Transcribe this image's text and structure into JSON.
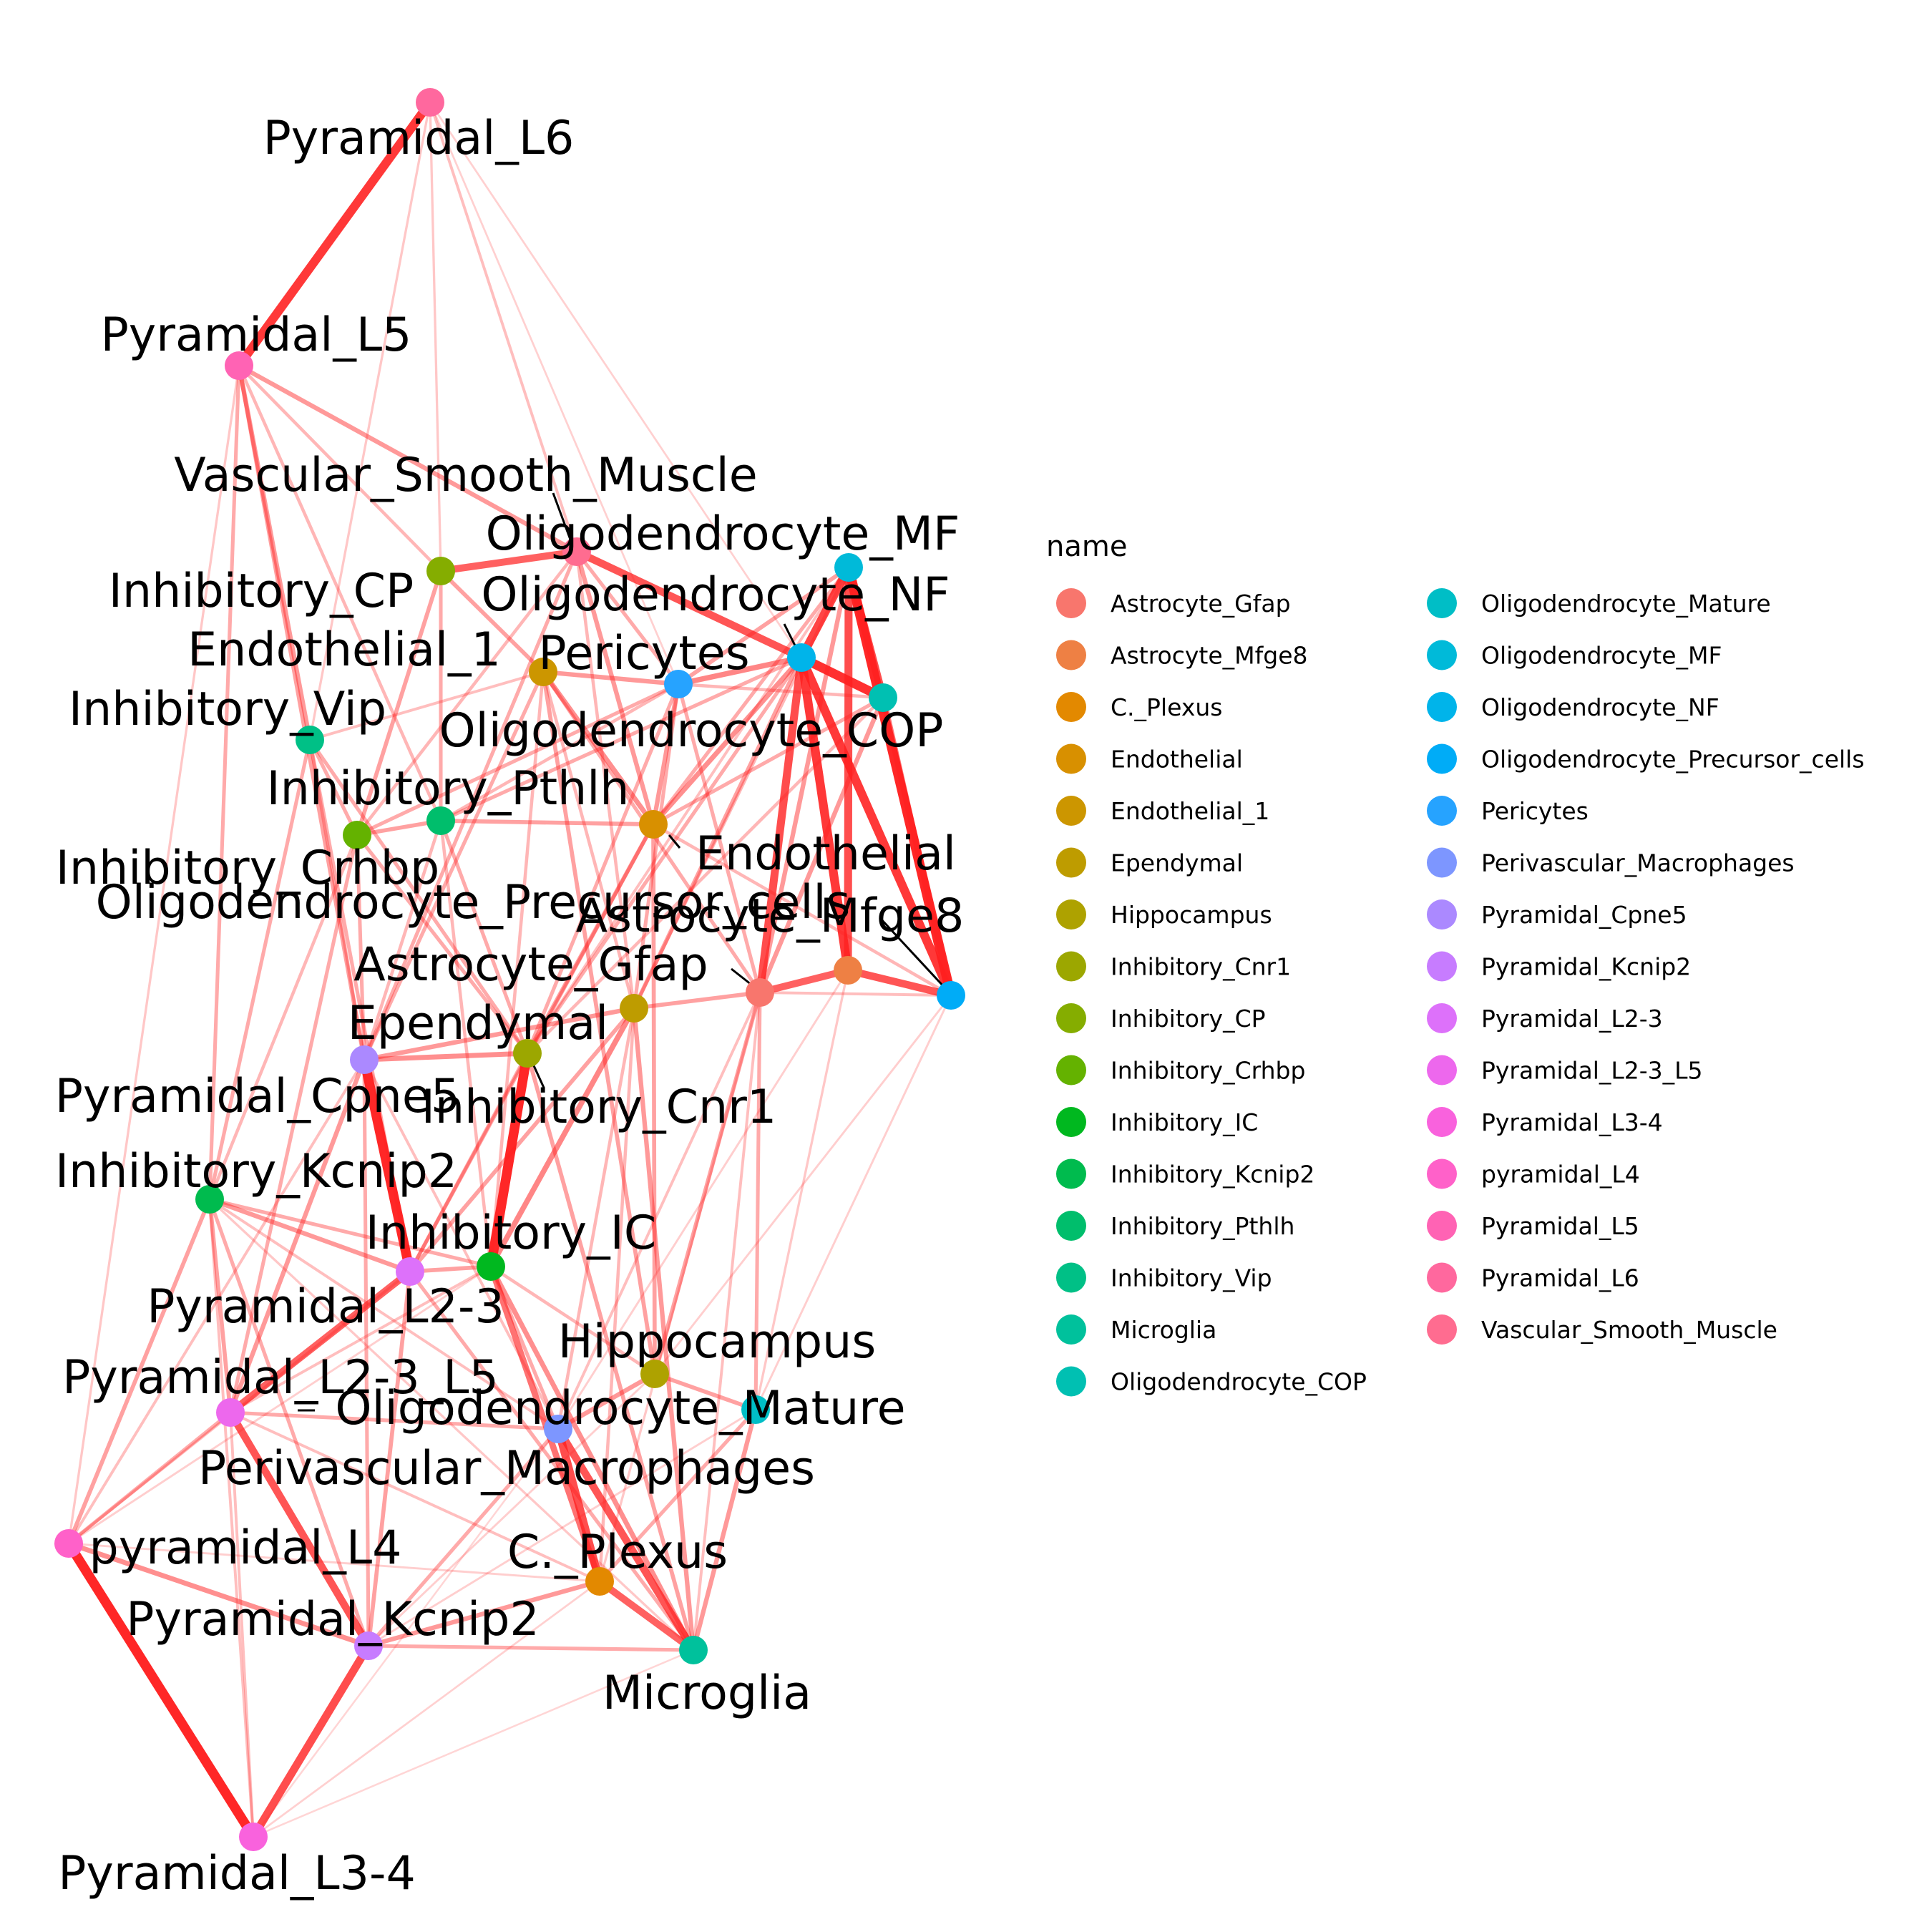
{
  "legend": {
    "title": "name"
  },
  "edge_color": "#ff2020",
  "nodes": [
    {
      "name": "Astrocyte_Gfap",
      "color": "#F8766D"
    },
    {
      "name": "Astrocyte_Mfge8",
      "color": "#EE8044"
    },
    {
      "name": "C._Plexus",
      "color": "#E38900"
    },
    {
      "name": "Endothelial",
      "color": "#D89000"
    },
    {
      "name": "Endothelial_1",
      "color": "#CC9600"
    },
    {
      "name": "Ependymal",
      "color": "#BE9C00"
    },
    {
      "name": "Hippocampus",
      "color": "#AEA200"
    },
    {
      "name": "Inhibitory_Cnr1",
      "color": "#9CA700"
    },
    {
      "name": "Inhibitory_CP",
      "color": "#85AD00"
    },
    {
      "name": "Inhibitory_Crhbp",
      "color": "#64B200"
    },
    {
      "name": "Inhibitory_IC",
      "color": "#00B81F"
    },
    {
      "name": "Inhibitory_Kcnip2",
      "color": "#00BB4E"
    },
    {
      "name": "Inhibitory_Pthlh",
      "color": "#00BE6C"
    },
    {
      "name": "Inhibitory_Vip",
      "color": "#00C086"
    },
    {
      "name": "Microglia",
      "color": "#00C19C"
    },
    {
      "name": "Oligodendrocyte_COP",
      "color": "#00C0B2"
    },
    {
      "name": "Oligodendrocyte_Mature",
      "color": "#00BEC6"
    },
    {
      "name": "Oligodendrocyte_MF",
      "color": "#00BAD9"
    },
    {
      "name": "Oligodendrocyte_NF",
      "color": "#00B4EA"
    },
    {
      "name": "Oligodendrocyte_Precursor_cells",
      "color": "#00ACF7"
    },
    {
      "name": "Pericytes",
      "color": "#26A3FF"
    },
    {
      "name": "Perivascular_Macrophages",
      "color": "#7D96FF"
    },
    {
      "name": "Pyramidal_Cpne5",
      "color": "#AB89FF"
    },
    {
      "name": "Pyramidal_Kcnip2",
      "color": "#C77CFF"
    },
    {
      "name": "Pyramidal_L2-3",
      "color": "#DD71FA"
    },
    {
      "name": "Pyramidal_L2-3_L5",
      "color": "#ED68ED"
    },
    {
      "name": "Pyramidal_L3-4",
      "color": "#F962DD"
    },
    {
      "name": "pyramidal_L4",
      "color": "#FF61C9"
    },
    {
      "name": "Pyramidal_L5",
      "color": "#FF63B4"
    },
    {
      "name": "Pyramidal_L6",
      "color": "#FF689E"
    },
    {
      "name": "Vascular_Smooth_Muscle",
      "color": "#FF6C90"
    }
  ],
  "edges": [
    {
      "source": "Pyramidal_L6",
      "target": "Pyramidal_L5",
      "weight": 0.9
    },
    {
      "source": "pyramidal_L4",
      "target": "Pyramidal_L3-4",
      "weight": 1.0
    },
    {
      "source": "Pyramidal_Kcnip2",
      "target": "Pyramidal_L3-4",
      "weight": 0.8
    },
    {
      "source": "Oligodendrocyte_MF",
      "target": "Oligodendrocyte_Precursor_cells",
      "weight": 1.0
    },
    {
      "source": "Oligodendrocyte_NF",
      "target": "Oligodendrocyte_COP",
      "weight": 0.95
    },
    {
      "source": "Oligodendrocyte_NF",
      "target": "Oligodendrocyte_Precursor_cells",
      "weight": 0.9
    },
    {
      "source": "Oligodendrocyte_NF",
      "target": "Oligodendrocyte_MF",
      "weight": 0.85
    },
    {
      "source": "Oligodendrocyte_NF",
      "target": "Astrocyte_Mfge8",
      "weight": 0.9
    },
    {
      "source": "Oligodendrocyte_NF",
      "target": "Astrocyte_Gfap",
      "weight": 0.8
    },
    {
      "source": "Oligodendrocyte_MF",
      "target": "Oligodendrocyte_COP",
      "weight": 0.8
    },
    {
      "source": "Oligodendrocyte_MF",
      "target": "Astrocyte_Mfge8",
      "weight": 0.8
    },
    {
      "source": "Astrocyte_Gfap",
      "target": "Astrocyte_Mfge8",
      "weight": 0.7
    },
    {
      "source": "Astrocyte_Mfge8",
      "target": "Oligodendrocyte_Precursor_cells",
      "weight": 0.75
    },
    {
      "source": "Oligodendrocyte_COP",
      "target": "Oligodendrocyte_Precursor_cells",
      "weight": 0.6
    },
    {
      "source": "Vascular_Smooth_Muscle",
      "target": "Oligodendrocyte_NF",
      "weight": 0.75
    },
    {
      "source": "Inhibitory_CP",
      "target": "Vascular_Smooth_Muscle",
      "weight": 0.7
    },
    {
      "source": "Pyramidal_Cpne5",
      "target": "Pyramidal_L2-3",
      "weight": 1.0
    },
    {
      "source": "Inhibitory_Cnr1",
      "target": "Inhibitory_IC",
      "weight": 1.0
    },
    {
      "source": "Inhibitory_Cnr1",
      "target": "Pyramidal_Cpne5",
      "weight": 0.45
    },
    {
      "source": "Pyramidal_L2-3",
      "target": "Pyramidal_L2-3_L5",
      "weight": 0.7
    },
    {
      "source": "Pyramidal_L2-3_L5",
      "target": "Pyramidal_Kcnip2",
      "weight": 0.75
    },
    {
      "source": "Perivascular_Macrophages",
      "target": "C._Plexus",
      "weight": 0.8
    },
    {
      "source": "Perivascular_Macrophages",
      "target": "Microglia",
      "weight": 0.75
    },
    {
      "source": "C._Plexus",
      "target": "Microglia",
      "weight": 0.7
    },
    {
      "source": "Inhibitory_IC",
      "target": "C._Plexus",
      "weight": 0.6
    },
    {
      "source": "Ependymal",
      "target": "Inhibitory_IC",
      "weight": 0.5
    },
    {
      "source": "Ependymal",
      "target": "Astrocyte_Gfap",
      "weight": 0.35
    },
    {
      "source": "Pericytes",
      "target": "Oligodendrocyte_NF",
      "weight": 0.5
    },
    {
      "source": "Endothelial_1",
      "target": "Endothelial",
      "weight": 0.45
    },
    {
      "source": "Pyramidal_L5",
      "target": "Vascular_Smooth_Muscle",
      "weight": 0.4
    },
    {
      "source": "Pyramidal_L5",
      "target": "Inhibitory_Vip",
      "weight": 0.4
    },
    {
      "source": "Pyramidal_L5",
      "target": "Pyramidal_Cpne5",
      "weight": 0.35
    },
    {
      "source": "Inhibitory_Kcnip2",
      "target": "Pyramidal_L2-3",
      "weight": 0.4
    },
    {
      "source": "Inhibitory_Kcnip2",
      "target": "Pyramidal_L2-3_L5",
      "weight": 0.35
    },
    {
      "source": "Inhibitory_Kcnip2",
      "target": "pyramidal_L4",
      "weight": 0.35
    },
    {
      "source": "Inhibitory_Kcnip2",
      "target": "Pyramidal_Kcnip2",
      "weight": 0.3
    },
    {
      "source": "pyramidal_L4",
      "target": "Pyramidal_Kcnip2",
      "weight": 0.45
    },
    {
      "source": "pyramidal_L4",
      "target": "Pyramidal_L2-3_L5",
      "weight": 0.3
    },
    {
      "source": "Pyramidal_Kcnip2",
      "target": "C._Plexus",
      "weight": 0.4
    },
    {
      "source": "Pyramidal_Kcnip2",
      "target": "Microglia",
      "weight": 0.3
    },
    {
      "source": "Pyramidal_L2-3",
      "target": "Pyramidal_Kcnip2",
      "weight": 0.35
    },
    {
      "source": "Pyramidal_L2-3",
      "target": "Inhibitory_IC",
      "weight": 0.35
    },
    {
      "source": "Pyramidal_Cpne5",
      "target": "Ependymal",
      "weight": 0.4
    },
    {
      "source": "Pyramidal_Cpne5",
      "target": "Pyramidal_L2-3_L5",
      "weight": 0.4
    },
    {
      "source": "Inhibitory_Crhbp",
      "target": "Inhibitory_Pthlh",
      "weight": 0.35
    },
    {
      "source": "Inhibitory_Crhbp",
      "target": "Inhibitory_Vip",
      "weight": 0.3
    },
    {
      "source": "Inhibitory_Crhbp",
      "target": "Pyramidal_Cpne5",
      "weight": 0.3
    },
    {
      "source": "Inhibitory_Pthlh",
      "target": "Endothelial",
      "weight": 0.35
    },
    {
      "source": "Inhibitory_CP",
      "target": "Endothelial_1",
      "weight": 0.35
    },
    {
      "source": "Inhibitory_CP",
      "target": "Inhibitory_Crhbp",
      "weight": 0.35
    },
    {
      "source": "Inhibitory_CP",
      "target": "Inhibitory_Pthlh",
      "weight": 0.3
    },
    {
      "source": "Endothelial_1",
      "target": "Pericytes",
      "weight": 0.4
    },
    {
      "source": "Endothelial_1",
      "target": "Hippocampus",
      "weight": 0.35
    },
    {
      "source": "Endothelial",
      "target": "Hippocampus",
      "weight": 0.35
    },
    {
      "source": "Endothelial",
      "target": "Oligodendrocyte_NF",
      "weight": 0.45
    },
    {
      "source": "Pericytes",
      "target": "Endothelial",
      "weight": 0.4
    },
    {
      "source": "Astrocyte_Gfap",
      "target": "Oligodendrocyte_Mature",
      "weight": 0.3
    },
    {
      "source": "Hippocampus",
      "target": "Oligodendrocyte_Mature",
      "weight": 0.35
    },
    {
      "source": "Hippocampus",
      "target": "Perivascular_Macrophages",
      "weight": 0.4
    },
    {
      "source": "Oligodendrocyte_Mature",
      "target": "Microglia",
      "weight": 0.4
    },
    {
      "source": "Oligodendrocyte_Mature",
      "target": "C._Plexus",
      "weight": 0.3
    },
    {
      "source": "Inhibitory_IC",
      "target": "Microglia",
      "weight": 0.45
    },
    {
      "source": "Inhibitory_Cnr1",
      "target": "Microglia",
      "weight": 0.35
    },
    {
      "source": "Ependymal",
      "target": "Microglia",
      "weight": 0.4
    },
    {
      "source": "Astrocyte_Gfap",
      "target": "Hippocampus",
      "weight": 0.35
    },
    {
      "source": "Vascular_Smooth_Muscle",
      "target": "Endothelial",
      "weight": 0.4
    },
    {
      "source": "Vascular_Smooth_Muscle",
      "target": "Pyramidal_Cpne5",
      "weight": 0.3
    },
    {
      "source": "Inhibitory_Vip",
      "target": "Inhibitory_Kcnip2",
      "weight": 0.3
    },
    {
      "source": "Inhibitory_Vip",
      "target": "Inhibitory_Cnr1",
      "weight": 0.3
    },
    {
      "source": "Inhibitory_Pthlh",
      "target": "Inhibitory_Cnr1",
      "weight": 0.3
    },
    {
      "source": "Inhibitory_Crhbp",
      "target": "Inhibitory_Cnr1",
      "weight": 0.3
    },
    {
      "source": "Oligodendrocyte_NF",
      "target": "Ependymal",
      "weight": 0.35
    },
    {
      "source": "Oligodendrocyte_NF",
      "target": "Inhibitory_Pthlh",
      "weight": 0.3
    },
    {
      "source": "Oligodendrocyte_NF",
      "target": "Inhibitory_Cnr1",
      "weight": 0.3
    },
    {
      "source": "Oligodendrocyte_COP",
      "target": "Endothelial",
      "weight": 0.3
    },
    {
      "source": "Oligodendrocyte_COP",
      "target": "Astrocyte_Gfap",
      "weight": 0.4
    },
    {
      "source": "Oligodendrocyte_MF",
      "target": "Pericytes",
      "weight": 0.35
    },
    {
      "source": "Oligodendrocyte_MF",
      "target": "Astrocyte_Gfap",
      "weight": 0.4
    },
    {
      "source": "Oligodendrocyte_MF",
      "target": "Endothelial",
      "weight": 0.3
    },
    {
      "source": "Pericytes",
      "target": "Inhibitory_Crhbp",
      "weight": 0.3
    },
    {
      "source": "Pericytes",
      "target": "Inhibitory_Cnr1",
      "weight": 0.3
    },
    {
      "source": "Pericytes",
      "target": "Astrocyte_Gfap",
      "weight": 0.3
    },
    {
      "source": "Endothelial_1",
      "target": "Pyramidal_Cpne5",
      "weight": 0.3
    },
    {
      "source": "Endothelial_1",
      "target": "Astrocyte_Gfap",
      "weight": 0.3
    },
    {
      "source": "Endothelial",
      "target": "Inhibitory_Cnr1",
      "weight": 0.35
    },
    {
      "source": "Endothelial",
      "target": "Pyramidal_L2-3",
      "weight": 0.3
    },
    {
      "source": "Ependymal",
      "target": "Pyramidal_L2-3",
      "weight": 0.35
    },
    {
      "source": "Inhibitory_Cnr1",
      "target": "Pyramidal_L2-3",
      "weight": 0.3
    },
    {
      "source": "Inhibitory_Crhbp",
      "target": "Pyramidal_L2-3_L5",
      "weight": 0.3
    },
    {
      "source": "Inhibitory_Vip",
      "target": "Pyramidal_L2-3",
      "weight": 0.3
    },
    {
      "source": "Inhibitory_Kcnip2",
      "target": "Inhibitory_IC",
      "weight": 0.3
    },
    {
      "source": "Pyramidal_L2-3_L5",
      "target": "Perivascular_Macrophages",
      "weight": 0.3
    },
    {
      "source": "Pyramidal_Kcnip2",
      "target": "Perivascular_Macrophages",
      "weight": 0.3
    },
    {
      "source": "Pyramidal_L2-3",
      "target": "Microglia",
      "weight": 0.3
    },
    {
      "source": "Pyramidal_Cpne5",
      "target": "Pyramidal_Kcnip2",
      "weight": 0.3
    },
    {
      "source": "Pyramidal_L5",
      "target": "Inhibitory_Kcnip2",
      "weight": 0.3
    },
    {
      "source": "Pyramidal_L5",
      "target": "Inhibitory_Pthlh",
      "weight": 0.25
    },
    {
      "source": "Pyramidal_L6",
      "target": "Vascular_Smooth_Muscle",
      "weight": 0.2
    },
    {
      "source": "Pyramidal_L6",
      "target": "Inhibitory_CP",
      "weight": 0.15
    },
    {
      "source": "Pyramidal_L6",
      "target": "Pericytes",
      "weight": 0.1
    },
    {
      "source": "Pyramidal_L6",
      "target": "Oligodendrocyte_NF",
      "weight": 0.1
    },
    {
      "source": "Pyramidal_L6",
      "target": "Inhibitory_Vip",
      "weight": 0.15
    },
    {
      "source": "Pyramidal_L5",
      "target": "pyramidal_L4",
      "weight": 0.15
    },
    {
      "source": "Pyramidal_L5",
      "target": "Inhibitory_CP",
      "weight": 0.25
    },
    {
      "source": "pyramidal_L4",
      "target": "Pyramidal_Cpne5",
      "weight": 0.2
    },
    {
      "source": "pyramidal_L4",
      "target": "Pyramidal_L2-3",
      "weight": 0.2
    },
    {
      "source": "Pyramidal_L3-4",
      "target": "Pyramidal_L2-3_L5",
      "weight": 0.2
    },
    {
      "source": "Pyramidal_L3-4",
      "target": "Inhibitory_Kcnip2",
      "weight": 0.2
    },
    {
      "source": "Pyramidal_L3-4",
      "target": "C._Plexus",
      "weight": 0.1
    },
    {
      "source": "Pyramidal_L3-4",
      "target": "Microglia",
      "weight": 0.08
    },
    {
      "source": "Pyramidal_L3-4",
      "target": "Perivascular_Macrophages",
      "weight": 0.08
    },
    {
      "source": "Pyramidal_Kcnip2",
      "target": "Oligodendrocyte_Mature",
      "weight": 0.12
    },
    {
      "source": "Pyramidal_Kcnip2",
      "target": "Hippocampus",
      "weight": 0.12
    },
    {
      "source": "Astrocyte_Gfap",
      "target": "Microglia",
      "weight": 0.2
    },
    {
      "source": "Astrocyte_Gfap",
      "target": "C._Plexus",
      "weight": 0.15
    },
    {
      "source": "Astrocyte_Gfap",
      "target": "Perivascular_Macrophages",
      "weight": 0.2
    },
    {
      "source": "Astrocyte_Mfge8",
      "target": "Oligodendrocyte_Mature",
      "weight": 0.15
    },
    {
      "source": "Astrocyte_Mfge8",
      "target": "Perivascular_Macrophages",
      "weight": 0.12
    },
    {
      "source": "Oligodendrocyte_Precursor_cells",
      "target": "Oligodendrocyte_Mature",
      "weight": 0.12
    },
    {
      "source": "Oligodendrocyte_Precursor_cells",
      "target": "Hippocampus",
      "weight": 0.12
    },
    {
      "source": "Oligodendrocyte_Precursor_cells",
      "target": "Astrocyte_Gfap",
      "weight": 0.2
    },
    {
      "source": "Inhibitory_IC",
      "target": "Perivascular_Macrophages",
      "weight": 0.3
    },
    {
      "source": "Inhibitory_IC",
      "target": "Hippocampus",
      "weight": 0.25
    },
    {
      "source": "Ependymal",
      "target": "Perivascular_Macrophages",
      "weight": 0.25
    },
    {
      "source": "Ependymal",
      "target": "C._Plexus",
      "weight": 0.25
    },
    {
      "source": "Inhibitory_Vip",
      "target": "Endothelial_1",
      "weight": 0.2
    },
    {
      "source": "Inhibitory_Vip",
      "target": "Pyramidal_Cpne5",
      "weight": 0.25
    },
    {
      "source": "Inhibitory_Crhbp",
      "target": "Inhibitory_Kcnip2",
      "weight": 0.25
    },
    {
      "source": "Inhibitory_Pthlh",
      "target": "Pyramidal_Cpne5",
      "weight": 0.25
    },
    {
      "source": "Inhibitory_Pthlh",
      "target": "Inhibitory_IC",
      "weight": 0.25
    },
    {
      "source": "Endothelial_1",
      "target": "Inhibitory_IC",
      "weight": 0.25
    },
    {
      "source": "Endothelial_1",
      "target": "Ependymal",
      "weight": 0.25
    },
    {
      "source": "Vascular_Smooth_Muscle",
      "target": "Pericytes",
      "weight": 0.3
    },
    {
      "source": "Vascular_Smooth_Muscle",
      "target": "Ependymal",
      "weight": 0.25
    },
    {
      "source": "Vascular_Smooth_Muscle",
      "target": "Inhibitory_Crhbp",
      "weight": 0.25
    },
    {
      "source": "Oligodendrocyte_COP",
      "target": "Pericytes",
      "weight": 0.25
    },
    {
      "source": "Oligodendrocyte_COP",
      "target": "Inhibitory_Cnr1",
      "weight": 0.25
    },
    {
      "source": "Oligodendrocyte_MF",
      "target": "Inhibitory_Cnr1",
      "weight": 0.2
    },
    {
      "source": "Oligodendrocyte_MF",
      "target": "Ependymal",
      "weight": 0.25
    },
    {
      "source": "Oligodendrocyte_Precursor_cells",
      "target": "Endothelial",
      "weight": 0.25
    },
    {
      "source": "Pericytes",
      "target": "Ependymal",
      "weight": 0.3
    },
    {
      "source": "Pericytes",
      "target": "Inhibitory_Pthlh",
      "weight": 0.25
    },
    {
      "source": "Inhibitory_Kcnip2",
      "target": "Microglia",
      "weight": 0.15
    },
    {
      "source": "Inhibitory_Kcnip2",
      "target": "Perivascular_Macrophages",
      "weight": 0.2
    },
    {
      "source": "pyramidal_L4",
      "target": "Inhibitory_IC",
      "weight": 0.12
    },
    {
      "source": "pyramidal_L4",
      "target": "C._Plexus",
      "weight": 0.12
    },
    {
      "source": "Pyramidal_L2-3_L5",
      "target": "C._Plexus",
      "weight": 0.2
    },
    {
      "source": "Pyramidal_L2-3_L5",
      "target": "Inhibitory_IC",
      "weight": 0.2
    },
    {
      "source": "Pyramidal_Cpne5",
      "target": "Perivascular_Macrophages",
      "weight": 0.2
    }
  ]
}
